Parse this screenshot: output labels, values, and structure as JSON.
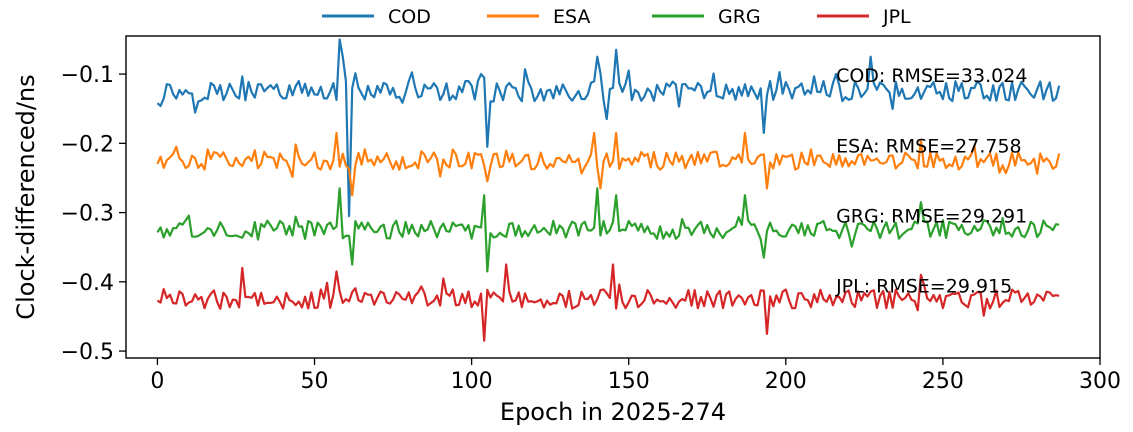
{
  "chart_data": {
    "type": "line",
    "title": "",
    "xlabel": "Epoch in 2025-274",
    "ylabel": "Clock-differenced/ns",
    "xlim": [
      -10,
      300
    ],
    "ylim": [
      -0.51,
      -0.045
    ],
    "xticks": [
      0,
      50,
      100,
      150,
      200,
      250,
      300
    ],
    "yticks": [
      -0.5,
      -0.4,
      -0.3,
      -0.2,
      -0.1
    ],
    "xtick_labels": [
      "0",
      "50",
      "100",
      "150",
      "200",
      "250",
      "300"
    ],
    "ytick_labels": [
      "−0.5",
      "−0.4",
      "−0.3",
      "−0.2",
      "−0.1"
    ],
    "grid": false,
    "legend_position": "top-center",
    "x_count": 288,
    "series": [
      {
        "name": "COD",
        "color": "#1f77b4",
        "baseline": -0.125,
        "amplitude": 0.015,
        "spikes": [
          [
            58,
            0.075
          ],
          [
            59,
            0.05
          ],
          [
            61,
            -0.18
          ],
          [
            105,
            -0.08
          ],
          [
            104,
            0.02
          ],
          [
            140,
            0.05
          ],
          [
            146,
            0.06
          ],
          [
            143,
            -0.04
          ],
          [
            193,
            -0.06
          ],
          [
            227,
            0.05
          ]
        ]
      },
      {
        "name": "ESA",
        "color": "#ff7f0e",
        "baseline": -0.225,
        "amplitude": 0.013,
        "spikes": [
          [
            57,
            0.04
          ],
          [
            62,
            -0.05
          ],
          [
            105,
            -0.03
          ],
          [
            139,
            0.04
          ],
          [
            141,
            -0.04
          ],
          [
            146,
            0.04
          ],
          [
            187,
            0.04
          ],
          [
            194,
            -0.04
          ],
          [
            243,
            0.03
          ]
        ]
      },
      {
        "name": "GRG",
        "color": "#2ca02c",
        "baseline": -0.325,
        "amplitude": 0.014,
        "spikes": [
          [
            58,
            0.06
          ],
          [
            62,
            -0.05
          ],
          [
            104,
            0.05
          ],
          [
            105,
            -0.06
          ],
          [
            140,
            0.06
          ],
          [
            146,
            0.05
          ],
          [
            187,
            0.05
          ],
          [
            193,
            -0.04
          ],
          [
            243,
            0.04
          ]
        ]
      },
      {
        "name": "JPL",
        "color": "#d62728",
        "baseline": -0.425,
        "amplitude": 0.014,
        "spikes": [
          [
            27,
            0.045
          ],
          [
            57,
            0.04
          ],
          [
            104,
            -0.06
          ],
          [
            111,
            0.05
          ],
          [
            145,
            0.05
          ],
          [
            194,
            -0.05
          ],
          [
            243,
            0.035
          ]
        ]
      }
    ],
    "annotations": [
      {
        "text": "COD: RMSE=33.024",
        "x": 216,
        "y": -0.101
      },
      {
        "text": "ESA: RMSE=27.758",
        "x": 216,
        "y": -0.203
      },
      {
        "text": "GRG: RMSE=29.291",
        "x": 216,
        "y": -0.304
      },
      {
        "text": "JPL: RMSE=29.915",
        "x": 216,
        "y": -0.405
      }
    ]
  }
}
